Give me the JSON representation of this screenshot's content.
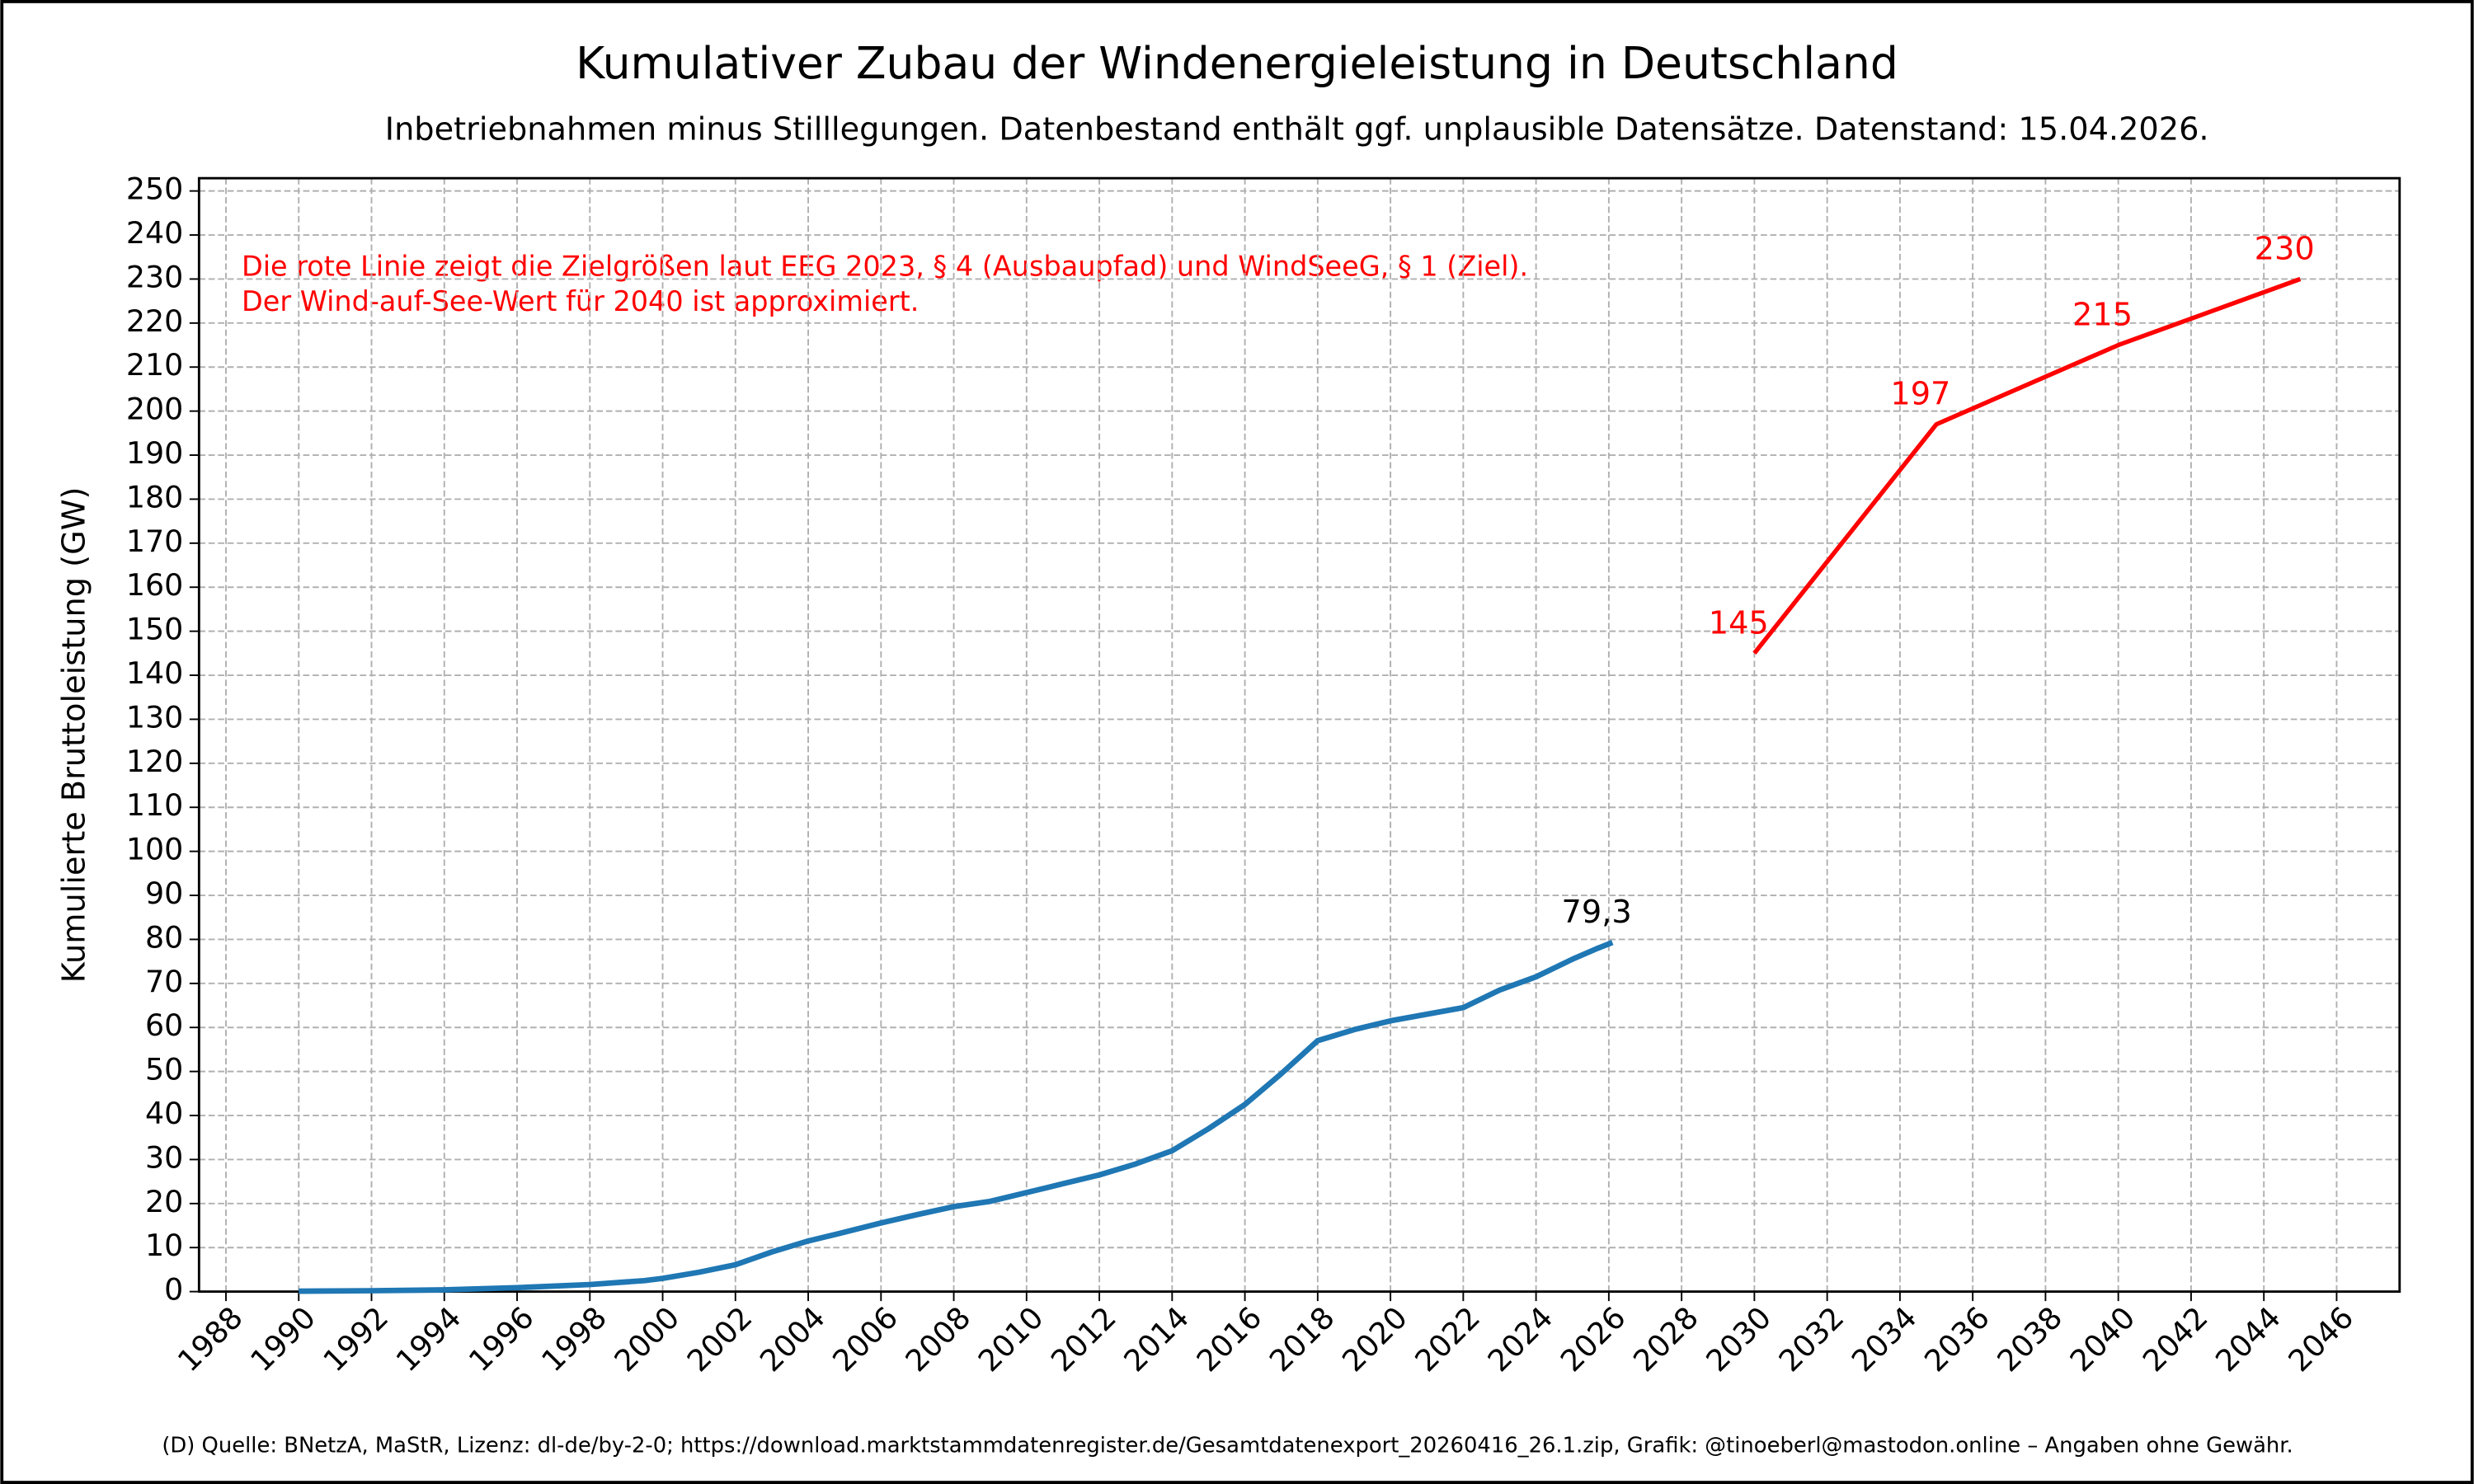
{
  "chart_data": {
    "type": "line",
    "title": "Kumulativer Zubau der Windenergieleistung in Deutschland",
    "subtitle": "Inbetriebnahmen minus Stilllegungen. Datenbestand enthält ggf. unplausible Datensätze. Datenstand: 15.04.2026.",
    "ylabel": "Kumulierte Bruttoleistung (GW)",
    "notes": [
      "Die rote Linie zeigt die Zielgrößen laut EEG 2023, § 4 (Ausbaupfad) und WindSeeG, § 1 (Ziel).",
      "Der Wind-auf-See-Wert für 2040 ist approximiert."
    ],
    "footer": "(D) Quelle: BNetzA, MaStR, Lizenz: dl-de/by-2-0; https://download.marktstammdatenregister.de/Gesamtdatenexport_20260416_26.1.zip, Grafik: @tinoeberl@mastodon.online – Angaben ohne Gewähr.",
    "grid": true,
    "xlim": [
      1987.26,
      2047.73
    ],
    "ylim": [
      0,
      252.9
    ],
    "xticks": [
      1988,
      1990,
      1992,
      1994,
      1996,
      1998,
      2000,
      2002,
      2004,
      2006,
      2008,
      2010,
      2012,
      2014,
      2016,
      2018,
      2020,
      2022,
      2024,
      2026,
      2028,
      2030,
      2032,
      2034,
      2036,
      2038,
      2040,
      2042,
      2044,
      2046
    ],
    "yticks": [
      0,
      10,
      20,
      30,
      40,
      50,
      60,
      70,
      80,
      90,
      100,
      110,
      120,
      130,
      140,
      150,
      160,
      170,
      180,
      190,
      200,
      210,
      220,
      230,
      240,
      250
    ],
    "series": [
      {
        "color": "#1f77b4",
        "x": [
          1990,
          1992,
          1994,
          1996,
          1998,
          1999.5,
          2000,
          2001,
          2002,
          2003,
          2004,
          2005,
          2006,
          2007,
          2008,
          2009,
          2010,
          2011,
          2012,
          2013,
          2014,
          2015,
          2016,
          2017,
          2018,
          2019,
          2020,
          2021,
          2022,
          2023,
          2024,
          2025,
          2025.7,
          2026.1
        ],
        "values": [
          0.1,
          0.2,
          0.4,
          0.9,
          1.6,
          2.5,
          3,
          4.4,
          6.1,
          9,
          11.5,
          13.5,
          15.6,
          17.5,
          19.3,
          20.5,
          22.5,
          24.5,
          26.5,
          29,
          32,
          37,
          42.5,
          49.5,
          57,
          59.5,
          61.5,
          63,
          64.5,
          68.5,
          71.5,
          75.5,
          78,
          79.3
        ],
        "value_labels": [
          null,
          null,
          null,
          null,
          null,
          null,
          null,
          null,
          null,
          null,
          null,
          null,
          null,
          null,
          null,
          null,
          null,
          null,
          null,
          null,
          null,
          null,
          null,
          null,
          null,
          null,
          null,
          null,
          null,
          null,
          null,
          null,
          null,
          "79,3"
        ]
      },
      {
        "color": "#ff0000",
        "x": [
          2030,
          2035,
          2040,
          2045
        ],
        "values": [
          145,
          197,
          215,
          230
        ]
      }
    ]
  }
}
